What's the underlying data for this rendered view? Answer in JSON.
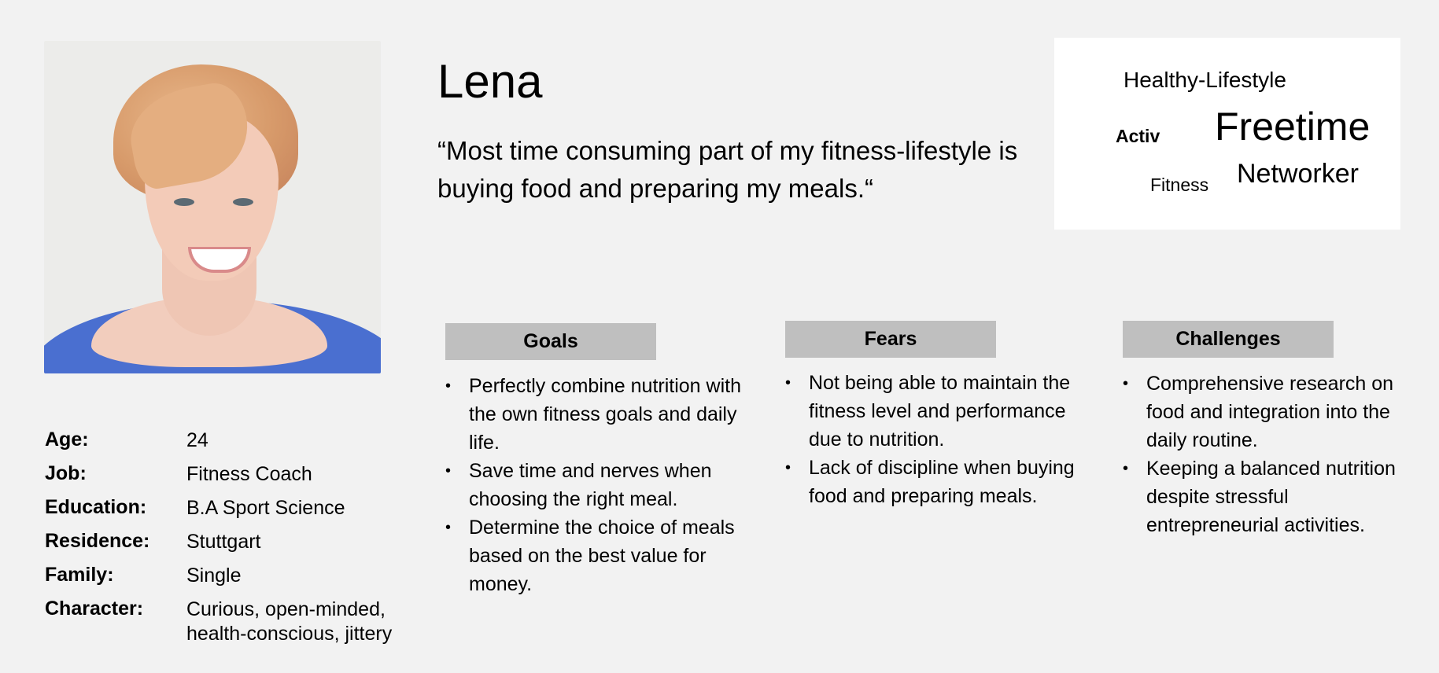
{
  "persona": {
    "name": "Lena",
    "quote": "“Most time consuming part of my fitness-lifestyle is buying food and preparing my meals.“"
  },
  "word_cloud": [
    "Healthy-Lifestyle",
    "Activ",
    "Freetime",
    "Fitness",
    "Networker"
  ],
  "details": [
    {
      "label": "Age:",
      "value": "24"
    },
    {
      "label": "Job:",
      "value": "Fitness Coach"
    },
    {
      "label": "Education:",
      "value": "B.A Sport Science"
    },
    {
      "label": "Residence:",
      "value": "Stuttgart"
    },
    {
      "label": "Family:",
      "value": "Single"
    },
    {
      "label": "Character:",
      "value": "Curious, open-minded,",
      "value2": "health-conscious, jittery"
    }
  ],
  "sections": {
    "goals": {
      "title": "Goals",
      "items": [
        "Perfectly combine nutrition with the own fitness goals and daily life.",
        "Save time and nerves when choosing the right meal.",
        "Determine the choice of meals based on the best value for money."
      ]
    },
    "fears": {
      "title": "Fears",
      "items": [
        "Not being able to maintain the fitness level and performance due to nutrition.",
        "Lack of discipline when buying food and preparing meals."
      ]
    },
    "challenges": {
      "title": "Challenges",
      "items": [
        "Comprehensive research on food and integration into the daily routine.",
        "Keeping a balanced nutrition despite stressful entrepreneurial activities."
      ]
    }
  }
}
